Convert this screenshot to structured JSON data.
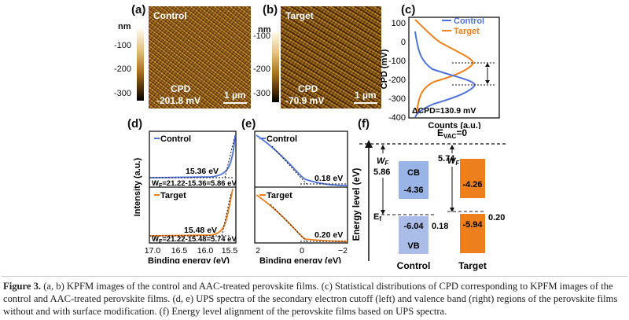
{
  "panels": {
    "a": {
      "letter": "(a)",
      "label": "Control",
      "cpd_title": "CPD",
      "cpd_value": "-201.8 mV",
      "scale": "1 µm"
    },
    "b": {
      "letter": "(b)",
      "label": "Target",
      "cpd_title": "CPD",
      "cpd_value": "-70.9 mV",
      "scale": "1 µm"
    },
    "colorbar": {
      "unit": "nm",
      "ticks": [
        "-100",
        "-200",
        "-300"
      ]
    },
    "c": {
      "letter": "(c)",
      "legend": [
        "Control",
        "Target"
      ],
      "ylabel": "CPD (mV)",
      "xlabel": "Counts (a.u.)",
      "yticks": [
        "100",
        "0",
        "-100",
        "-200",
        "-300",
        "-400"
      ],
      "delta": "ΔCPD=130.9 mV"
    },
    "d": {
      "letter": "(d)",
      "ylabel": "Intensity (a.u.)",
      "xlabel": "Binding energy (eV)",
      "xticks": [
        "17.0",
        "16.5",
        "16.0",
        "15.5"
      ],
      "top": {
        "legend": "Control",
        "cutoff": "15.36 eV",
        "wf": "W",
        "wf_sub": "F",
        "wf_eq": "=21.22-15.36=5.86 eV"
      },
      "bottom": {
        "legend": "Target",
        "cutoff": "15.48 eV",
        "wf": "W",
        "wf_sub": "F",
        "wf_eq": "=21.22-15.48=5.74 eV"
      }
    },
    "e": {
      "letter": "(e)",
      "xlabel": "Binding energy (eV)",
      "xticks": [
        "2",
        "0",
        "−2"
      ],
      "top": {
        "legend": "Control",
        "value": "0.18 eV"
      },
      "bottom": {
        "legend": "Target",
        "value": "0.20 eV"
      }
    },
    "f": {
      "letter": "(f)",
      "evac": "E",
      "evac_sub": "VAC",
      "evac_tail": "=0",
      "ylabel": "Energy level (eV)",
      "ef": "E",
      "ef_sub": "f",
      "control": {
        "wf_label": "W",
        "wf_sub": "F",
        "wf": "5.86",
        "cb": "CB",
        "cb_val": "-4.36",
        "vb_val": "-6.04",
        "vb": "VB",
        "gap": "0.18",
        "name": "Control"
      },
      "target": {
        "wf_label": "W",
        "wf_sub": "F",
        "wf": "5.74",
        "cb_val": "-4.26",
        "vb_val": "-5.94",
        "gap": "0.20",
        "name": "Target"
      }
    }
  },
  "caption": {
    "label": "Figure 3.",
    "text": " (a, b) KPFM images of the control and AAC-treated perovskite films. (c) Statistical distributions of CPD corresponding to KPFM images of the control and AAC-treated perovskite films. (d, e) UPS spectra of the secondary electron cutoff (left) and valence band (right) regions of the perovskite films without and with surface modification. (f) Energy level alignment of the perovskite films based on UPS spectra."
  },
  "colors": {
    "control": "#4f73d9",
    "target": "#ee7f1d",
    "cb_control": "#99b4e6",
    "vb_control": "#a9bde8",
    "band_target": "#ee7f1d"
  }
}
